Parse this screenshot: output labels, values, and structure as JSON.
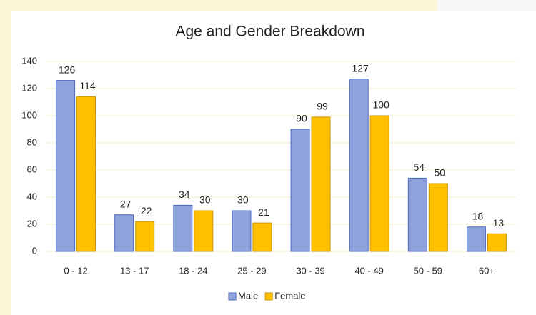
{
  "chart_data": {
    "type": "bar",
    "title": "Age and Gender Breakdown",
    "categories": [
      "0 - 12",
      "13 - 17",
      "18 - 24",
      "25 - 29",
      "30 - 39",
      "40 - 49",
      "50 - 59",
      "60+"
    ],
    "series": [
      {
        "name": "Male",
        "color": "#8ea3dc",
        "values": [
          126,
          27,
          34,
          30,
          90,
          127,
          54,
          18
        ]
      },
      {
        "name": "Female",
        "color": "#ffc000",
        "values": [
          114,
          22,
          30,
          21,
          99,
          100,
          50,
          13
        ]
      }
    ],
    "ylim": [
      0,
      140
    ],
    "yticks": [
      0,
      20,
      40,
      60,
      80,
      100,
      120,
      140
    ],
    "grid": true,
    "legend": "bottom"
  }
}
